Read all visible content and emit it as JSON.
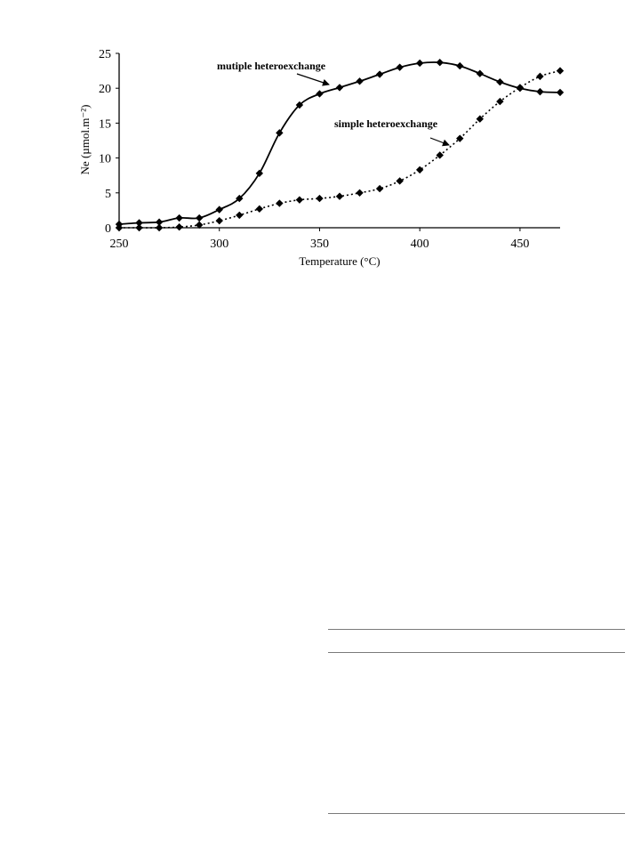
{
  "chart_data": {
    "type": "line",
    "title": "",
    "xlabel": "Temperature (°C)",
    "ylabel": "Ne (µmol.m⁻²)",
    "xlim": [
      250,
      470
    ],
    "ylim": [
      0,
      25
    ],
    "xticks": [
      250,
      300,
      350,
      400,
      450
    ],
    "yticks": [
      0,
      5,
      10,
      15,
      20,
      25
    ],
    "grid": false,
    "legend": "none",
    "series": [
      {
        "name": "mutiple heteroexchange",
        "line_style": "solid",
        "color": "#000000",
        "x": [
          250,
          260,
          270,
          280,
          290,
          300,
          310,
          320,
          330,
          340,
          350,
          360,
          370,
          380,
          390,
          400,
          410,
          420,
          430,
          440,
          450,
          460,
          470
        ],
        "y": [
          0.5,
          0.7,
          0.8,
          1.4,
          1.4,
          2.6,
          4.2,
          7.8,
          13.6,
          17.6,
          19.2,
          20.1,
          21.0,
          22.0,
          23.0,
          23.6,
          23.7,
          23.2,
          22.1,
          20.9,
          20.0,
          19.5,
          19.4
        ]
      },
      {
        "name": "simple heteroexchange",
        "line_style": "dotted",
        "color": "#000000",
        "x": [
          250,
          260,
          270,
          280,
          290,
          300,
          310,
          320,
          330,
          340,
          350,
          360,
          370,
          380,
          390,
          400,
          410,
          420,
          430,
          440,
          450,
          460,
          470
        ],
        "y": [
          0.0,
          0.0,
          0.0,
          0.1,
          0.4,
          1.0,
          1.8,
          2.7,
          3.5,
          4.0,
          4.2,
          4.5,
          5.0,
          5.6,
          6.7,
          8.3,
          10.4,
          12.8,
          15.6,
          18.1,
          20.1,
          21.7,
          22.5
        ]
      }
    ],
    "annotations": [
      {
        "text": "mutiple heteroexchange",
        "arrow_to_series": 0
      },
      {
        "text": "simple heteroexchange",
        "arrow_to_series": 1
      }
    ]
  }
}
